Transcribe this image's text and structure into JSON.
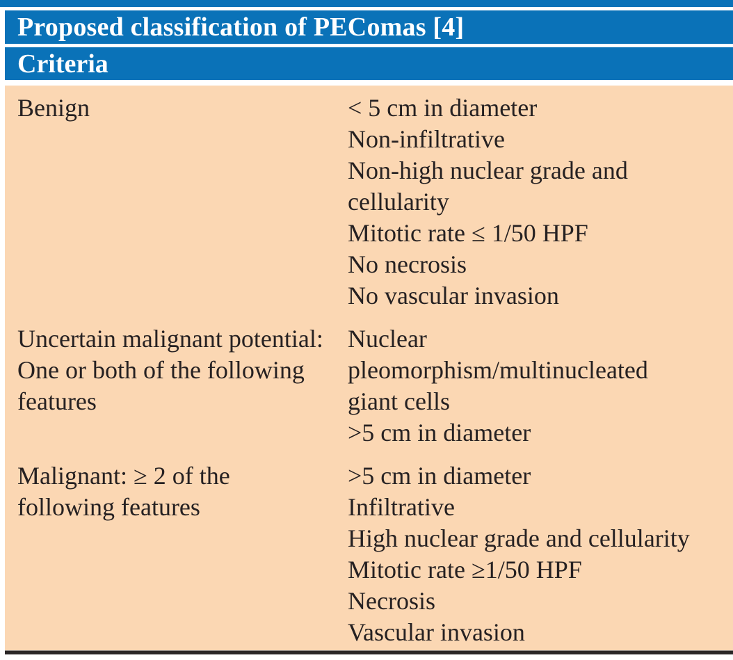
{
  "table": {
    "title": "Proposed classification of PEComas [4]",
    "column_header": "Criteria",
    "rows": [
      {
        "category": "Benign",
        "criteria": [
          "< 5 cm in diameter",
          "Non-infiltrative",
          "Non-high nuclear grade and cellularity",
          "Mitotic rate ≤ 1/50 HPF",
          "No necrosis",
          "No vascular invasion"
        ]
      },
      {
        "category": "Uncertain malignant potential: One or both of the following features",
        "criteria": [
          "Nuclear pleomorphism/multinucleated giant cells",
          ">5 cm in diameter"
        ]
      },
      {
        "category": "Malignant: ≥ 2 of the following features",
        "criteria": [
          ">5 cm in diameter",
          "Infiltrative",
          "High nuclear grade and cellularity",
          "Mitotic rate ≥1/50 HPF",
          "Necrosis",
          "Vascular invasion"
        ]
      }
    ],
    "colors": {
      "header_bg": "#0a72b8",
      "header_text": "#ffffff",
      "body_bg": "#fbd7b3",
      "body_text": "#262122",
      "bottom_rule": "#2a2626"
    }
  }
}
